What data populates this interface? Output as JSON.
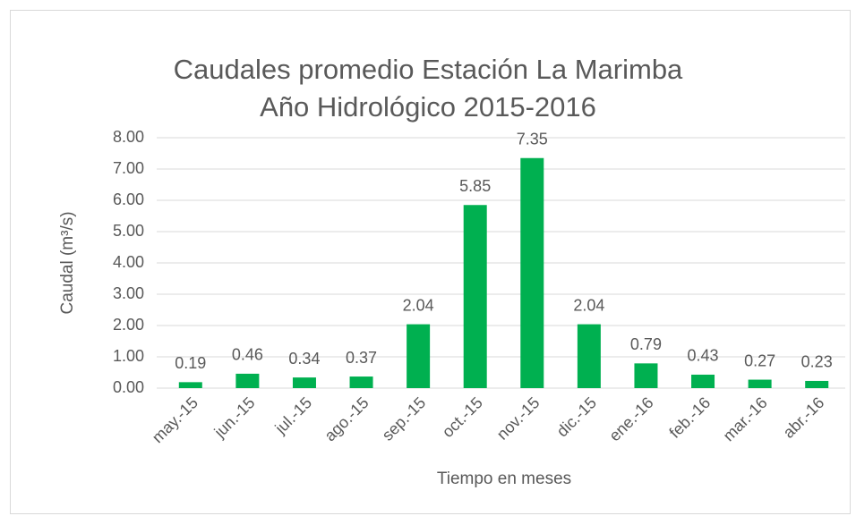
{
  "chart_data": {
    "type": "bar",
    "title": "Caudales promedio Estación La Marimba",
    "subtitle": "Año Hidrológico 2015-2016",
    "y_label": "Caudal (m³/s)",
    "x_label": "Tiempo en meses",
    "categories": [
      "may.-15",
      "jun.-15",
      "jul.-15",
      "ago.-15",
      "sep.-15",
      "oct.-15",
      "nov.-15",
      "dic.-15",
      "ene.-16",
      "feb.-16",
      "mar.-16",
      "abr.-16"
    ],
    "values": [
      0.19,
      0.46,
      0.34,
      0.37,
      2.04,
      5.85,
      7.35,
      2.04,
      0.79,
      0.43,
      0.27,
      0.23
    ],
    "color": "#00b050",
    "ylim": [
      0,
      8
    ],
    "yticks": [
      {
        "value": 0,
        "label": "0.00"
      },
      {
        "value": 1,
        "label": "1.00"
      },
      {
        "value": 2,
        "label": "2.00"
      },
      {
        "value": 3,
        "label": "3.00"
      },
      {
        "value": 4,
        "label": "4.00"
      },
      {
        "value": 5,
        "label": "5.00"
      },
      {
        "value": 6,
        "label": "6.00"
      },
      {
        "value": 7,
        "label": "7.00"
      },
      {
        "value": 8,
        "label": "8.00"
      }
    ],
    "grid": true
  }
}
